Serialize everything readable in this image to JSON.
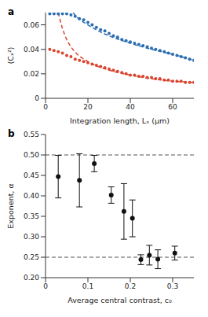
{
  "chart_data": [
    {
      "type": "scatter",
      "title": "a",
      "xlabel": "Integration length, Lₓ (μm)",
      "ylabel": "⟨Cₓ²⟩",
      "xlim": [
        0,
        70
      ],
      "xticks": [
        0,
        20,
        40,
        60
      ],
      "ylim": [
        0,
        0.07
      ],
      "yticks": [
        0,
        0.02,
        0.04,
        0.06
      ],
      "grid": false,
      "series": [
        {
          "type": "scatter",
          "marker": "circle",
          "color": "#2a6db0",
          "x": [
            2,
            4,
            6,
            8,
            10,
            12,
            14,
            16,
            18,
            20,
            22,
            24,
            26,
            28,
            30,
            32,
            34,
            36,
            38,
            40,
            42,
            44,
            46,
            48,
            50,
            52,
            54,
            56,
            58,
            60,
            62,
            64,
            66,
            68,
            70
          ],
          "values": [
            0.069,
            0.069,
            0.069,
            0.069,
            0.069,
            0.068,
            0.067,
            0.065,
            0.064,
            0.062,
            0.06,
            0.058,
            0.056,
            0.055,
            0.053,
            0.051,
            0.05,
            0.048,
            0.047,
            0.046,
            0.045,
            0.044,
            0.043,
            0.042,
            0.041,
            0.04,
            0.039,
            0.038,
            0.037,
            0.036,
            0.035,
            0.034,
            0.033,
            0.032,
            0.031
          ]
        },
        {
          "type": "line",
          "line_style": "dashed",
          "color": "#2a6db0",
          "x": [
            13,
            15,
            20,
            25,
            30,
            40,
            50,
            60,
            70
          ],
          "values": [
            0.07,
            0.066,
            0.06,
            0.055,
            0.051,
            0.045,
            0.04,
            0.036,
            0.031
          ]
        },
        {
          "type": "scatter",
          "marker": "circle",
          "color": "#d9452f",
          "x": [
            2,
            4,
            6,
            8,
            10,
            12,
            14,
            16,
            18,
            20,
            22,
            24,
            26,
            28,
            30,
            32,
            34,
            36,
            38,
            40,
            42,
            44,
            46,
            48,
            50,
            52,
            54,
            56,
            58,
            60,
            62,
            64,
            66,
            68,
            70
          ],
          "values": [
            0.04,
            0.039,
            0.038,
            0.037,
            0.035,
            0.034,
            0.032,
            0.031,
            0.03,
            0.029,
            0.028,
            0.027,
            0.026,
            0.025,
            0.024,
            0.023,
            0.022,
            0.021,
            0.02,
            0.019,
            0.019,
            0.018,
            0.018,
            0.017,
            0.017,
            0.016,
            0.016,
            0.015,
            0.015,
            0.014,
            0.014,
            0.014,
            0.013,
            0.013,
            0.013
          ]
        },
        {
          "type": "line",
          "line_style": "dashed",
          "color": "#d9452f",
          "x": [
            6,
            8,
            10,
            12,
            15,
            20,
            30,
            40,
            50,
            60,
            70
          ],
          "values": [
            0.07,
            0.057,
            0.048,
            0.042,
            0.036,
            0.03,
            0.023,
            0.019,
            0.016,
            0.014,
            0.013
          ]
        }
      ]
    },
    {
      "type": "scatter",
      "title": "b",
      "xlabel": "Average central contrast, c₀",
      "ylabel": "Exponent, α",
      "xlim": [
        0,
        0.35
      ],
      "xticks": [
        0,
        0.1,
        0.2,
        0.3
      ],
      "ylim": [
        0.2,
        0.55
      ],
      "yticks": [
        {
          "value": 0.2,
          "label": "0.20"
        },
        0.25,
        {
          "value": 0.3,
          "label": "0.30"
        },
        0.35,
        {
          "value": 0.4,
          "label": "0.40"
        },
        0.45,
        {
          "value": 0.5,
          "label": "0.50"
        },
        0.55
      ],
      "grid": false,
      "reference_lines": [
        0.5,
        0.25
      ],
      "series": [
        {
          "type": "scatter",
          "marker": "circle",
          "color": "#111111",
          "x": [
            0.03,
            0.08,
            0.115,
            0.155,
            0.185,
            0.205,
            0.225,
            0.245,
            0.265,
            0.305
          ],
          "values": [
            0.447,
            0.438,
            0.479,
            0.402,
            0.362,
            0.345,
            0.244,
            0.255,
            0.245,
            0.26
          ],
          "errors": [
            0.052,
            0.065,
            0.02,
            0.02,
            0.068,
            0.045,
            0.012,
            0.024,
            0.023,
            0.017
          ]
        }
      ]
    }
  ]
}
